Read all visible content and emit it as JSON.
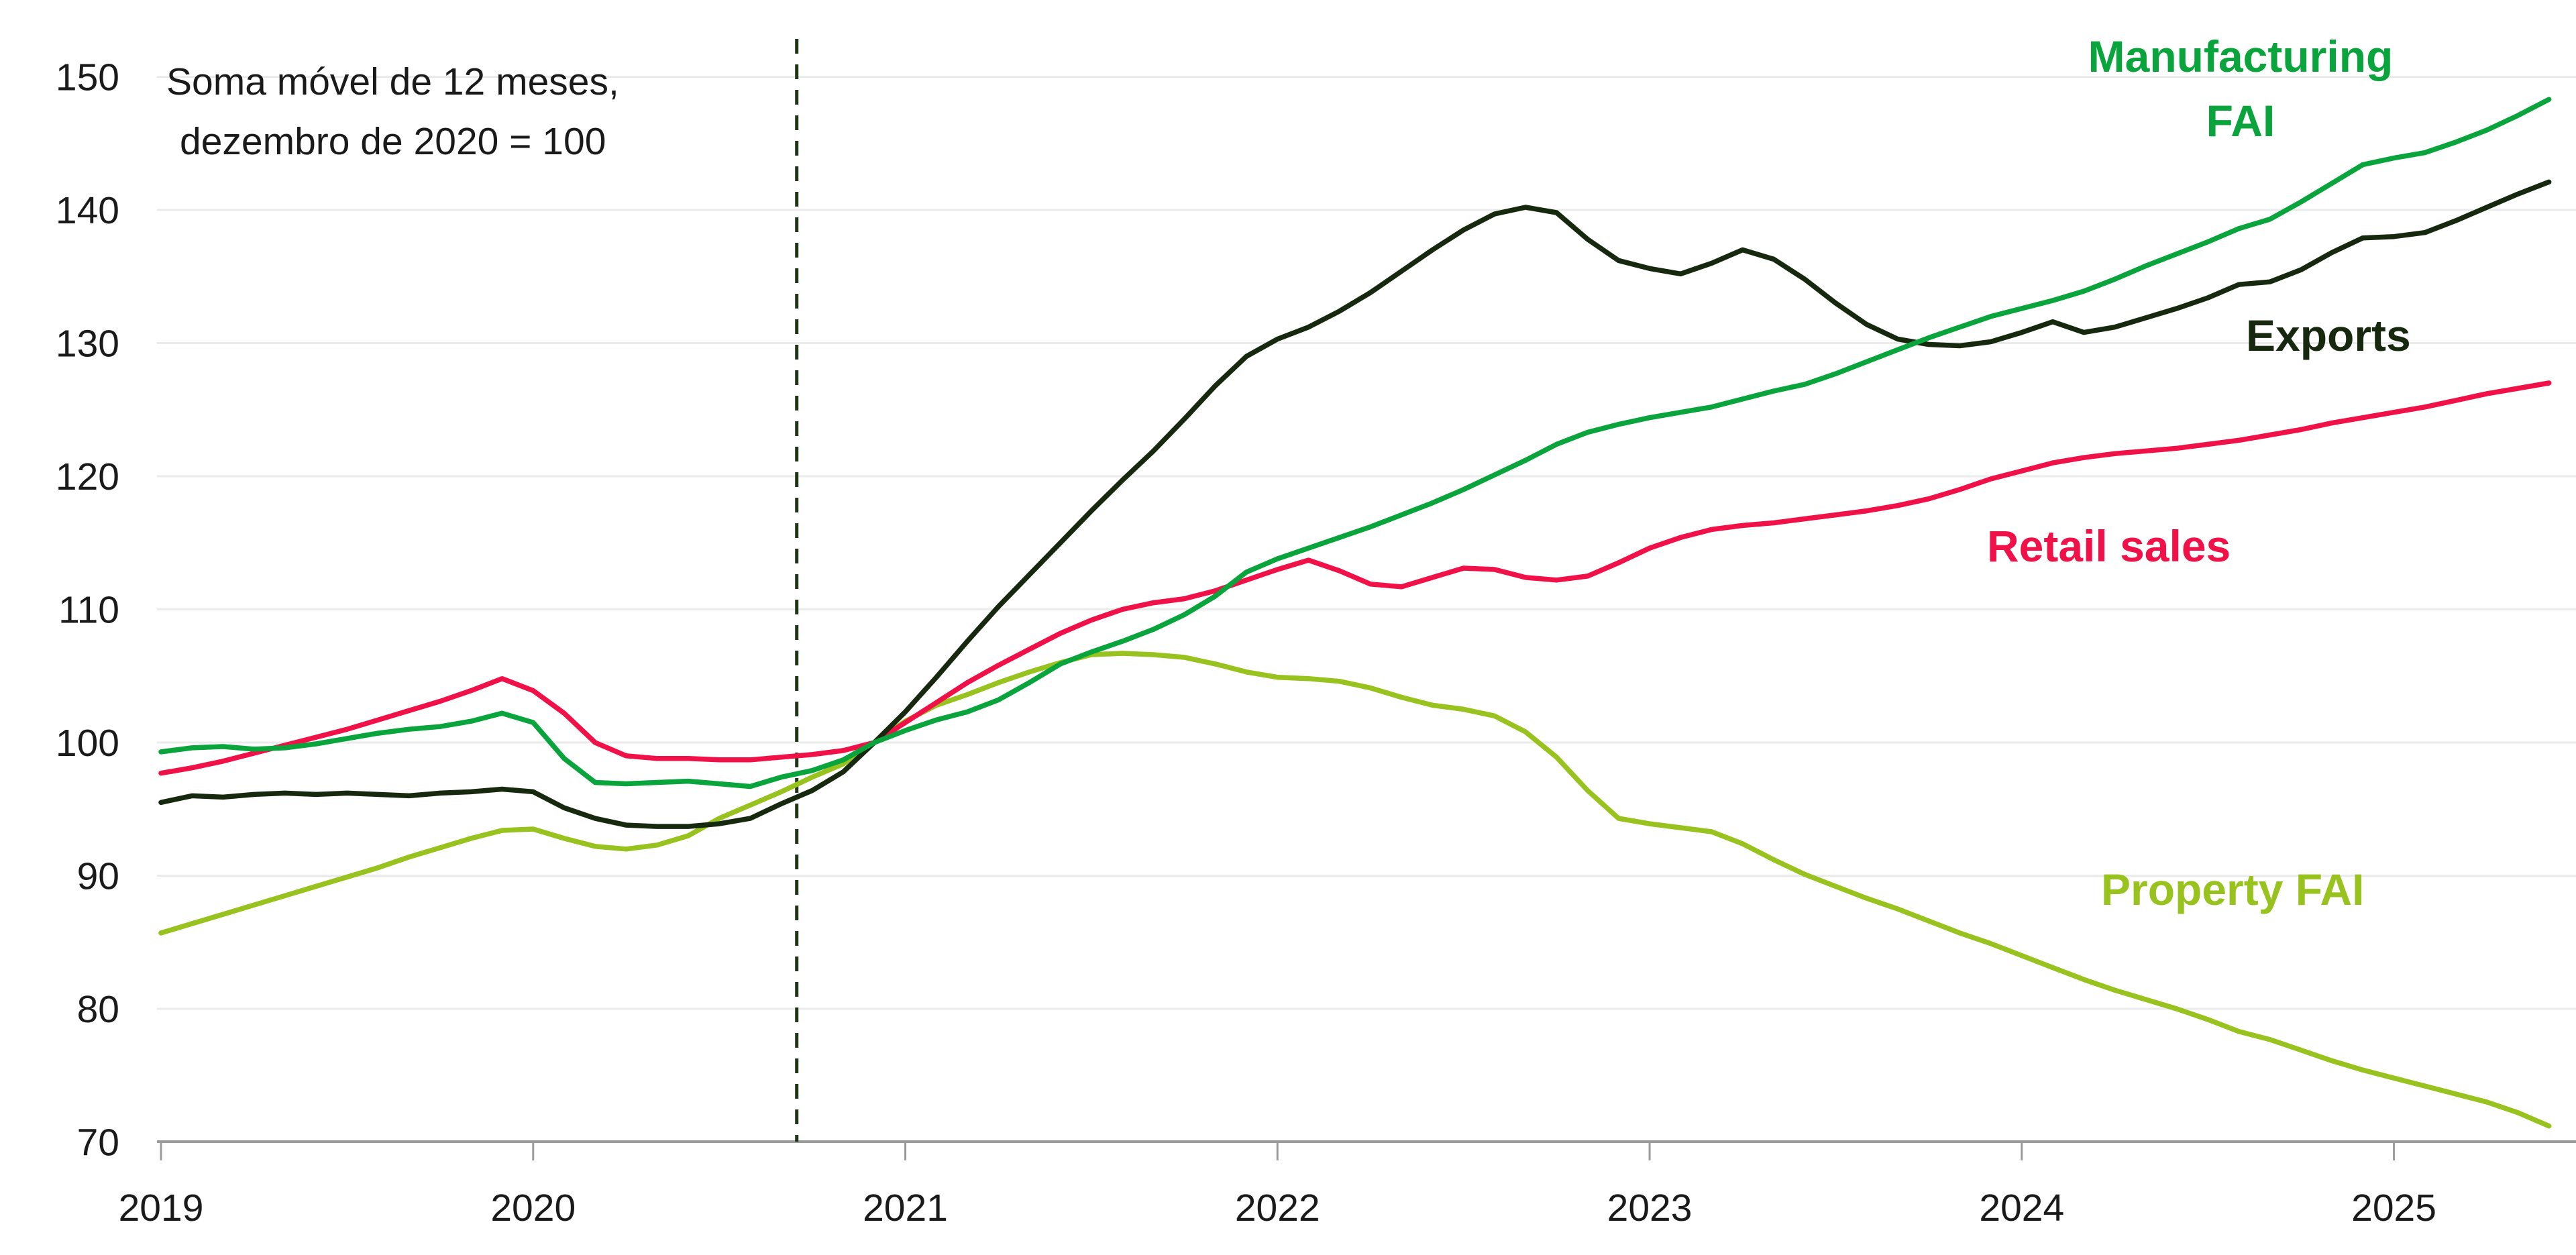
{
  "chart_data": {
    "type": "line",
    "title": "",
    "annotation": {
      "line1": "Soma móvel de 12 meses,",
      "line2": "dezembro de 2020 = 100"
    },
    "x_axis": {
      "frequency": "monthly",
      "start": "2019-01",
      "end": "2025-06",
      "tick_labels": [
        "2019",
        "2020",
        "2021",
        "2022",
        "2023",
        "2024",
        "2025"
      ]
    },
    "y_axis": {
      "ylim": [
        70,
        150
      ],
      "tick_labels": [
        "70",
        "80",
        "90",
        "100",
        "110",
        "120",
        "130",
        "140",
        "150"
      ],
      "ticks": [
        70,
        80,
        90,
        100,
        110,
        120,
        130,
        140,
        150
      ]
    },
    "grid": "horizontal",
    "reference_line": {
      "type": "vertical-dashed",
      "month": "2020-09",
      "month_index": 20.5,
      "color": "#1e3517"
    },
    "colors": {
      "exports": "#16290f",
      "manufacturing_fai": "#0aa43c",
      "retail_sales": "#f01148",
      "property_fai": "#98c21d",
      "gridline": "#ebebeb",
      "axis": "#9b9b9b",
      "text": "#1a1a1a"
    },
    "series": [
      {
        "name": "Property FAI",
        "color": "#98c21d",
        "values": [
          85.7,
          86.4,
          87.1,
          87.8,
          88.5,
          89.2,
          89.9,
          90.6,
          91.4,
          92.1,
          92.8,
          93.4,
          93.5,
          92.8,
          92.2,
          92.0,
          92.3,
          93.0,
          94.3,
          95.3,
          96.3,
          97.4,
          98.4,
          100.0,
          101.6,
          102.8,
          103.6,
          104.5,
          105.3,
          106.0,
          106.6,
          106.7,
          106.6,
          106.4,
          105.9,
          105.3,
          104.9,
          104.8,
          104.6,
          104.1,
          103.4,
          102.8,
          102.5,
          102.0,
          100.8,
          98.9,
          96.4,
          94.3,
          93.9,
          93.6,
          93.3,
          92.4,
          91.2,
          90.1,
          89.2,
          88.3,
          87.5,
          86.6,
          85.7,
          84.9,
          84.0,
          83.1,
          82.2,
          81.4,
          80.7,
          80.0,
          79.2,
          78.3,
          77.7,
          76.9,
          76.1,
          75.4,
          74.8,
          74.2,
          73.6,
          73.0,
          72.2,
          71.2
        ]
      },
      {
        "name": "Retail sales",
        "color": "#f01148",
        "values": [
          97.7,
          98.1,
          98.6,
          99.2,
          99.8,
          100.4,
          101.0,
          101.7,
          102.4,
          103.1,
          103.9,
          104.8,
          103.9,
          102.2,
          100.0,
          99.0,
          98.8,
          98.8,
          98.7,
          98.7,
          98.9,
          99.1,
          99.4,
          100.0,
          101.5,
          103.0,
          104.5,
          105.8,
          107.0,
          108.2,
          109.2,
          110.0,
          110.5,
          110.8,
          111.4,
          112.2,
          113.0,
          113.7,
          112.9,
          111.9,
          111.7,
          112.4,
          113.1,
          113.0,
          112.4,
          112.2,
          112.5,
          113.5,
          114.6,
          115.4,
          116.0,
          116.3,
          116.5,
          116.8,
          117.1,
          117.4,
          117.8,
          118.3,
          119.0,
          119.8,
          120.4,
          121.0,
          121.4,
          121.7,
          121.9,
          122.1,
          122.4,
          122.7,
          123.1,
          123.5,
          124.0,
          124.4,
          124.8,
          125.2,
          125.7,
          126.2,
          126.6,
          127.0
        ]
      },
      {
        "name": "Exports",
        "color": "#16290f",
        "values": [
          95.5,
          96.0,
          95.9,
          96.1,
          96.2,
          96.1,
          96.2,
          96.1,
          96.0,
          96.2,
          96.3,
          96.5,
          96.3,
          95.1,
          94.3,
          93.8,
          93.7,
          93.7,
          93.9,
          94.3,
          95.4,
          96.4,
          97.8,
          100.0,
          102.3,
          104.9,
          107.6,
          110.2,
          112.6,
          115.0,
          117.4,
          119.7,
          121.9,
          124.3,
          126.8,
          129.0,
          130.3,
          131.2,
          132.4,
          133.8,
          135.4,
          137.0,
          138.5,
          139.7,
          140.2,
          139.8,
          137.8,
          136.2,
          135.6,
          135.2,
          136.0,
          137.0,
          136.3,
          134.8,
          133.0,
          131.4,
          130.3,
          129.9,
          129.8,
          130.1,
          130.8,
          131.6,
          130.8,
          131.2,
          131.9,
          132.6,
          133.4,
          134.4,
          134.6,
          135.5,
          136.8,
          137.9,
          138.0,
          138.3,
          139.2,
          140.2,
          141.2,
          142.1
        ]
      },
      {
        "name": "Manufacturing FAI",
        "color": "#0aa43c",
        "values": [
          99.3,
          99.6,
          99.7,
          99.5,
          99.6,
          99.9,
          100.3,
          100.7,
          101.0,
          101.2,
          101.6,
          102.2,
          101.5,
          98.8,
          97.0,
          96.9,
          97.0,
          97.1,
          96.9,
          96.7,
          97.4,
          97.9,
          98.7,
          100.0,
          100.9,
          101.7,
          102.3,
          103.2,
          104.5,
          105.9,
          106.8,
          107.6,
          108.5,
          109.6,
          111.0,
          112.8,
          113.8,
          114.6,
          115.4,
          116.2,
          117.1,
          118.0,
          119.0,
          120.1,
          121.2,
          122.4,
          123.3,
          123.9,
          124.4,
          124.8,
          125.2,
          125.8,
          126.4,
          126.9,
          127.7,
          128.6,
          129.5,
          130.4,
          131.2,
          132.0,
          132.6,
          133.2,
          133.9,
          134.8,
          135.8,
          136.7,
          137.6,
          138.6,
          139.3,
          140.6,
          142.0,
          143.4,
          143.9,
          144.3,
          145.1,
          146.0,
          147.1,
          148.3
        ]
      }
    ],
    "legend_position": "inline-labels-near-lines"
  },
  "legend": {
    "manufacturing_line1": "Manufacturing",
    "manufacturing_line2": "FAI",
    "exports": "Exports",
    "retail": "Retail sales",
    "property": "Property FAI"
  }
}
